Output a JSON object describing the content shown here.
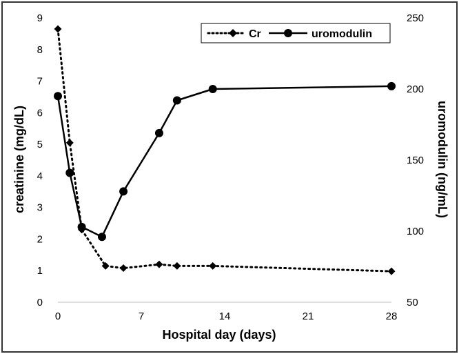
{
  "chart_data": {
    "type": "line",
    "xlabel": "Hospital day (days)",
    "ylabel_left": "creatinine (mg/dL)",
    "ylabel_right": "uromodulin (ng/mL)",
    "x_ticks": [
      0,
      7,
      14,
      21,
      28
    ],
    "xlim": [
      0,
      28
    ],
    "y_left_ticks": [
      0,
      1,
      2,
      3,
      4,
      5,
      6,
      7,
      8,
      9
    ],
    "y_left_lim": [
      0,
      9
    ],
    "y_right_ticks": [
      50,
      100,
      150,
      200,
      250
    ],
    "y_right_lim": [
      50,
      250
    ],
    "grid": false,
    "legend_position": "top-right",
    "series": [
      {
        "name": "Cr",
        "axis": "left",
        "style": "dotted",
        "marker": "diamond",
        "color": "#000000",
        "points": [
          {
            "x": 0,
            "y": 8.65
          },
          {
            "x": 1,
            "y": 5.05
          },
          {
            "x": 2,
            "y": 2.3
          },
          {
            "x": 4,
            "y": 1.15
          },
          {
            "x": 5.5,
            "y": 1.08
          },
          {
            "x": 8.5,
            "y": 1.2
          },
          {
            "x": 10,
            "y": 1.15
          },
          {
            "x": 13,
            "y": 1.15
          },
          {
            "x": 28,
            "y": 0.98
          }
        ]
      },
      {
        "name": "uromodulin",
        "axis": "right",
        "style": "solid",
        "marker": "circle",
        "color": "#000000",
        "points": [
          {
            "x": 0,
            "y": 195
          },
          {
            "x": 1,
            "y": 141
          },
          {
            "x": 2,
            "y": 103
          },
          {
            "x": 3.7,
            "y": 96
          },
          {
            "x": 5.5,
            "y": 128
          },
          {
            "x": 8.5,
            "y": 169
          },
          {
            "x": 10,
            "y": 192
          },
          {
            "x": 13,
            "y": 200
          },
          {
            "x": 28,
            "y": 202
          }
        ]
      }
    ]
  }
}
